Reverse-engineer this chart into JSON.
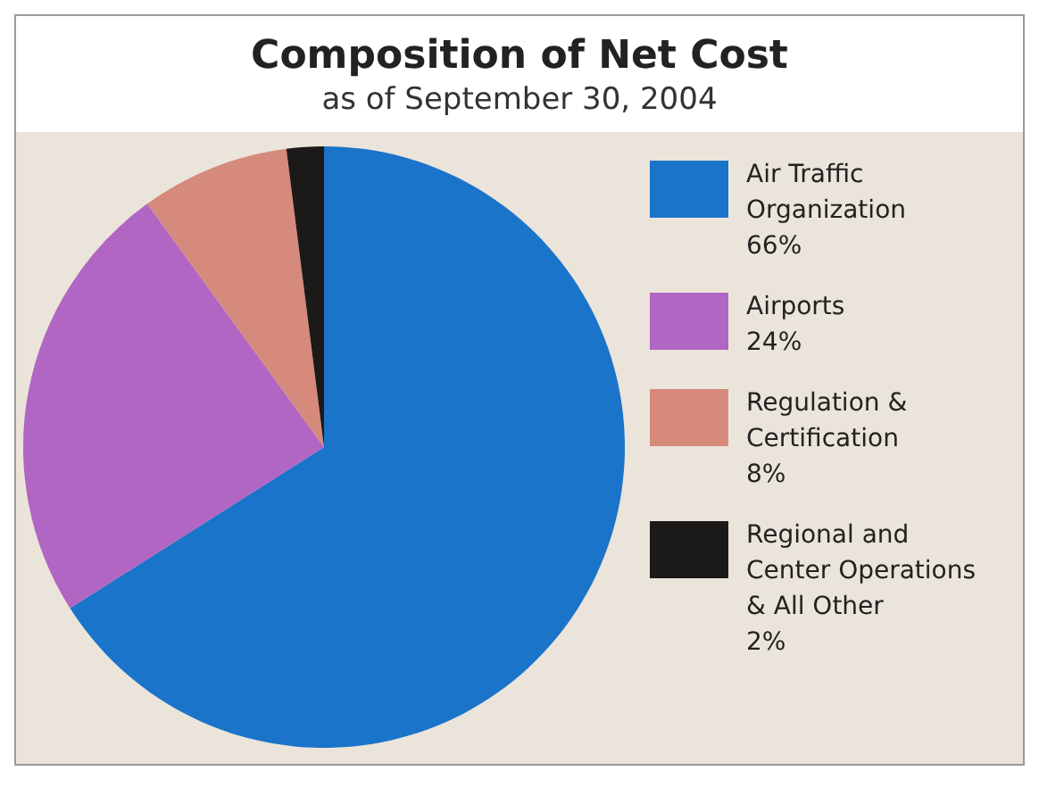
{
  "chart_data": {
    "type": "pie",
    "title": "Composition of Net Cost",
    "subtitle": "as of September 30, 2004",
    "categories": [
      "Air Traffic Organization",
      "Airports",
      "Regulation & Certification",
      "Regional and Center Operations & All Other"
    ],
    "values": [
      66,
      24,
      8,
      2
    ],
    "colors": [
      "#1a74c9",
      "#b066c2",
      "#d68a7c",
      "#1c1a18"
    ],
    "value_labels": [
      "66%",
      "24%",
      "8%",
      "2%"
    ],
    "legend": "right"
  }
}
